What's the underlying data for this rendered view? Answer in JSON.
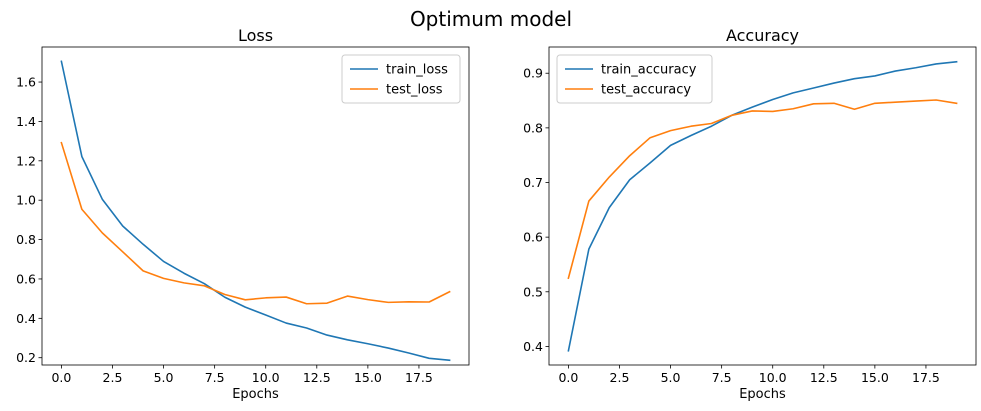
{
  "figure": {
    "suptitle": "Optimum model"
  },
  "chart_data": [
    {
      "type": "line",
      "title": "Loss",
      "xlabel": "Epochs",
      "ylabel": "",
      "x": [
        0,
        1,
        2,
        3,
        4,
        5,
        6,
        7,
        8,
        9,
        10,
        11,
        12,
        13,
        14,
        15,
        16,
        17,
        18,
        19
      ],
      "xlim": [
        -0.95,
        19.95
      ],
      "ylim": [
        0.163,
        1.778
      ],
      "xticks": [
        0.0,
        2.5,
        5.0,
        7.5,
        10.0,
        12.5,
        15.0,
        17.5
      ],
      "xtick_labels": [
        "0.0",
        "2.5",
        "5.0",
        "7.5",
        "10.0",
        "12.5",
        "15.0",
        "17.5"
      ],
      "yticks": [
        0.2,
        0.4,
        0.6,
        0.8,
        1.0,
        1.2,
        1.4,
        1.6
      ],
      "ytick_labels": [
        "0.2",
        "0.4",
        "0.6",
        "0.8",
        "1.0",
        "1.2",
        "1.4",
        "1.6"
      ],
      "grid": false,
      "legend_position": "top-right",
      "series": [
        {
          "name": "train_loss",
          "color": "#1f77b4",
          "values": [
            1.705,
            1.222,
            1.005,
            0.869,
            0.776,
            0.689,
            0.629,
            0.576,
            0.507,
            0.457,
            0.417,
            0.376,
            0.351,
            0.315,
            0.291,
            0.271,
            0.249,
            0.224,
            0.197,
            0.187
          ]
        },
        {
          "name": "test_loss",
          "color": "#ff7f0e",
          "values": [
            1.292,
            0.954,
            0.834,
            0.738,
            0.641,
            0.603,
            0.58,
            0.565,
            0.521,
            0.494,
            0.504,
            0.508,
            0.474,
            0.477,
            0.513,
            0.495,
            0.481,
            0.484,
            0.483,
            0.535
          ]
        }
      ]
    },
    {
      "type": "line",
      "title": "Accuracy",
      "xlabel": "Epochs",
      "ylabel": "",
      "x": [
        0,
        1,
        2,
        3,
        4,
        5,
        6,
        7,
        8,
        9,
        10,
        11,
        12,
        13,
        14,
        15,
        16,
        17,
        18,
        19
      ],
      "xlim": [
        -0.95,
        19.95
      ],
      "ylim": [
        0.366,
        0.948
      ],
      "xticks": [
        0.0,
        2.5,
        5.0,
        7.5,
        10.0,
        12.5,
        15.0,
        17.5
      ],
      "xtick_labels": [
        "0.0",
        "2.5",
        "5.0",
        "7.5",
        "10.0",
        "12.5",
        "15.0",
        "17.5"
      ],
      "yticks": [
        0.4,
        0.5,
        0.6,
        0.7,
        0.8,
        0.9
      ],
      "ytick_labels": [
        "0.4",
        "0.5",
        "0.6",
        "0.7",
        "0.8",
        "0.9"
      ],
      "grid": false,
      "legend_position": "top-left",
      "series": [
        {
          "name": "train_accuracy",
          "color": "#1f77b4",
          "values": [
            0.392,
            0.578,
            0.654,
            0.705,
            0.736,
            0.768,
            0.786,
            0.803,
            0.823,
            0.838,
            0.852,
            0.864,
            0.873,
            0.882,
            0.89,
            0.895,
            0.904,
            0.91,
            0.917,
            0.921
          ]
        },
        {
          "name": "test_accuracy",
          "color": "#ff7f0e",
          "values": [
            0.525,
            0.666,
            0.71,
            0.749,
            0.782,
            0.795,
            0.803,
            0.808,
            0.823,
            0.831,
            0.83,
            0.835,
            0.844,
            0.845,
            0.834,
            0.845,
            0.847,
            0.849,
            0.851,
            0.845
          ]
        }
      ]
    }
  ]
}
